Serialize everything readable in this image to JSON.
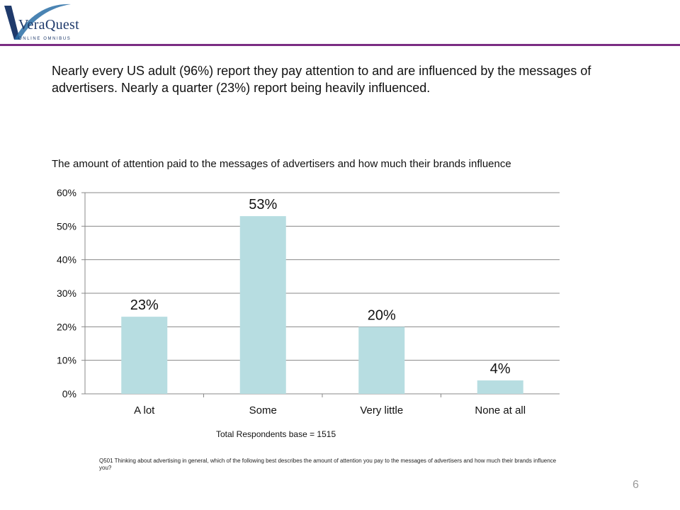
{
  "logo": {
    "name": "VeraQuest",
    "tagline": "ONLINE OMNIBUS"
  },
  "headline": "Nearly every US adult (96%) report they pay attention to and are influenced by the messages of advertisers.  Nearly a quarter (23%) report being heavily influenced.",
  "chart_data": {
    "type": "bar",
    "title": "The amount of attention paid to the messages of  advertisers and how much their brands influence",
    "categories": [
      "A lot",
      "Some",
      "Very little",
      "None at all"
    ],
    "values": [
      23,
      53,
      20,
      4
    ],
    "data_labels": [
      "23%",
      "53%",
      "20%",
      "4%"
    ],
    "ylim": [
      0,
      60
    ],
    "yticks": [
      0,
      10,
      20,
      30,
      40,
      50,
      60
    ],
    "ytick_labels": [
      "0%",
      "10%",
      "20%",
      "30%",
      "40%",
      "50%",
      "60%"
    ],
    "xlabel": "",
    "ylabel": "",
    "grid": true,
    "bar_color": "#b7dde1",
    "grid_color": "#888888"
  },
  "base_note": "Total Respondents base = 1515",
  "question_text": "Q501  Thinking about advertising in general, which of the following best describes the amount of attention you pay to the messages of advertisers and how much their brands influence you?",
  "page_number": "6",
  "colors": {
    "accent_rule": "#7b2d83",
    "logo_blue": "#1f3a6b"
  }
}
